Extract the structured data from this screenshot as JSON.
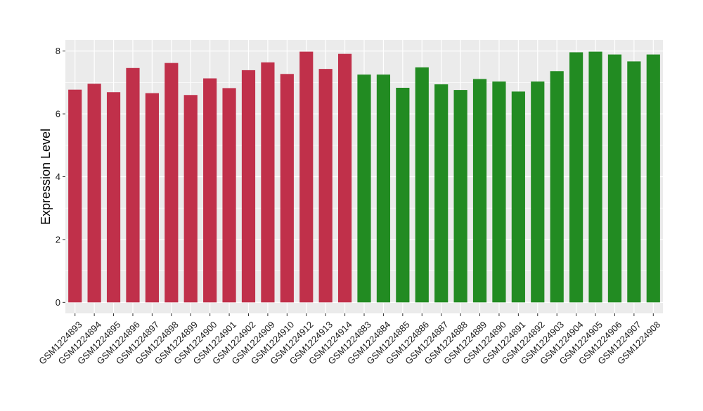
{
  "chart_data": {
    "type": "bar",
    "title": "",
    "xlabel": "",
    "ylabel": "Expression Level",
    "ylim": [
      -0.35,
      8.35
    ],
    "yticks": [
      0,
      2,
      4,
      6,
      8
    ],
    "grid": true,
    "legend": "none",
    "categories": [
      "GSM1224893",
      "GSM1224894",
      "GSM1224895",
      "GSM1224896",
      "GSM1224897",
      "GSM1224898",
      "GSM1224899",
      "GSM1224900",
      "GSM1224901",
      "GSM1224902",
      "GSM1224909",
      "GSM1224910",
      "GSM1224912",
      "GSM1224913",
      "GSM1224914",
      "GSM1224883",
      "GSM1224884",
      "GSM1224885",
      "GSM1224886",
      "GSM1224887",
      "GSM1224888",
      "GSM1224889",
      "GSM1224890",
      "GSM1224891",
      "GSM1224892",
      "GSM1224903",
      "GSM1224904",
      "GSM1224905",
      "GSM1224906",
      "GSM1224907",
      "GSM1224908"
    ],
    "values": [
      6.77,
      6.96,
      6.69,
      7.46,
      6.66,
      7.62,
      6.6,
      7.13,
      6.82,
      7.39,
      7.64,
      7.27,
      7.98,
      7.43,
      7.91,
      7.25,
      7.25,
      6.83,
      7.48,
      6.94,
      6.76,
      7.11,
      7.03,
      6.71,
      7.03,
      7.36,
      7.96,
      7.98,
      7.89,
      7.67,
      7.89
    ],
    "groups": [
      "a",
      "a",
      "a",
      "a",
      "a",
      "a",
      "a",
      "a",
      "a",
      "a",
      "a",
      "a",
      "a",
      "a",
      "a",
      "b",
      "b",
      "b",
      "b",
      "b",
      "b",
      "b",
      "b",
      "b",
      "b",
      "b",
      "b",
      "b",
      "b",
      "b",
      "b"
    ],
    "group_colors": {
      "a": "#c0304a",
      "b": "#228b22"
    },
    "panel_background": "#ebebeb",
    "gridline_color": "#ffffff"
  }
}
